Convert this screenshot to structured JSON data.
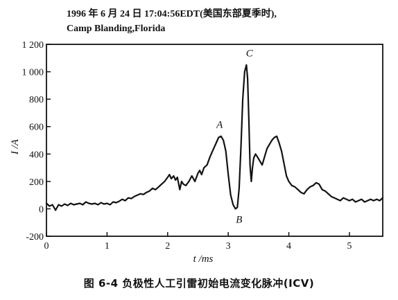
{
  "header": {
    "line1": "1996 年 6 月 24 日 17:04:56EDT(美国东部夏季时),",
    "line2": "Camp Blanding,Florida"
  },
  "caption": "图 6-4   负极性人工引雷初始电流变化脉冲(ICV)",
  "chart_data": {
    "type": "line",
    "xlabel": "t /ms",
    "ylabel": "I /A",
    "xlim": [
      0,
      5.55
    ],
    "ylim": [
      -200,
      1200
    ],
    "xticks": [
      0,
      1,
      2,
      3,
      4,
      5
    ],
    "yticks": [
      -200,
      0,
      200,
      400,
      600,
      800,
      1000,
      1200
    ],
    "ytick_labels": [
      "-200",
      "0",
      "200",
      "400",
      "600",
      "800",
      "1 000",
      "1 200"
    ],
    "grid": false,
    "annotations": [
      {
        "text": "A",
        "x": 2.88,
        "y": 530
      },
      {
        "text": "B",
        "x": 3.18,
        "y": 0
      },
      {
        "text": "C",
        "x": 3.35,
        "y": 1050
      }
    ],
    "series": [
      {
        "x": [
          0.0,
          0.05,
          0.1,
          0.15,
          0.2,
          0.25,
          0.3,
          0.35,
          0.4,
          0.45,
          0.5,
          0.55,
          0.6,
          0.65,
          0.7,
          0.75,
          0.8,
          0.85,
          0.9,
          0.95,
          1.0,
          1.05,
          1.1,
          1.15,
          1.2,
          1.25,
          1.3,
          1.35,
          1.4,
          1.45,
          1.5,
          1.55,
          1.6,
          1.65,
          1.7,
          1.75,
          1.8,
          1.85,
          1.9,
          1.95,
          2.0,
          2.03,
          2.06,
          2.1,
          2.13,
          2.16,
          2.2,
          2.23,
          2.26,
          2.3,
          2.35,
          2.4,
          2.45,
          2.5,
          2.53,
          2.56,
          2.6,
          2.65,
          2.7,
          2.75,
          2.8,
          2.84,
          2.88,
          2.92,
          2.96,
          3.0,
          3.04,
          3.08,
          3.12,
          3.15,
          3.18,
          3.21,
          3.24,
          3.27,
          3.3,
          3.32,
          3.34,
          3.36,
          3.38,
          3.4,
          3.42,
          3.45,
          3.48,
          3.52,
          3.56,
          3.6,
          3.64,
          3.68,
          3.72,
          3.76,
          3.8,
          3.84,
          3.88,
          3.92,
          3.96,
          4.0,
          4.05,
          4.1,
          4.15,
          4.2,
          4.25,
          4.3,
          4.35,
          4.4,
          4.45,
          4.5,
          4.55,
          4.6,
          4.65,
          4.7,
          4.75,
          4.8,
          4.85,
          4.9,
          4.95,
          5.0,
          5.05,
          5.1,
          5.15,
          5.2,
          5.25,
          5.3,
          5.35,
          5.4,
          5.45,
          5.5,
          5.55
        ],
        "y": [
          40,
          20,
          30,
          -10,
          30,
          20,
          35,
          25,
          40,
          30,
          35,
          40,
          30,
          50,
          40,
          35,
          40,
          30,
          45,
          35,
          40,
          30,
          50,
          45,
          55,
          70,
          60,
          80,
          75,
          90,
          100,
          110,
          105,
          120,
          130,
          150,
          140,
          160,
          180,
          200,
          230,
          250,
          220,
          240,
          210,
          230,
          140,
          200,
          180,
          170,
          200,
          240,
          200,
          260,
          280,
          250,
          300,
          320,
          380,
          430,
          480,
          520,
          530,
          500,
          420,
          250,
          100,
          30,
          0,
          10,
          150,
          450,
          800,
          1000,
          1050,
          950,
          650,
          320,
          200,
          300,
          370,
          400,
          380,
          350,
          320,
          380,
          440,
          470,
          500,
          520,
          530,
          480,
          420,
          330,
          240,
          200,
          170,
          160,
          140,
          120,
          110,
          140,
          160,
          170,
          190,
          180,
          140,
          130,
          110,
          90,
          80,
          70,
          60,
          80,
          70,
          60,
          70,
          50,
          60,
          70,
          50,
          60,
          70,
          60,
          70,
          60,
          80
        ]
      }
    ]
  }
}
